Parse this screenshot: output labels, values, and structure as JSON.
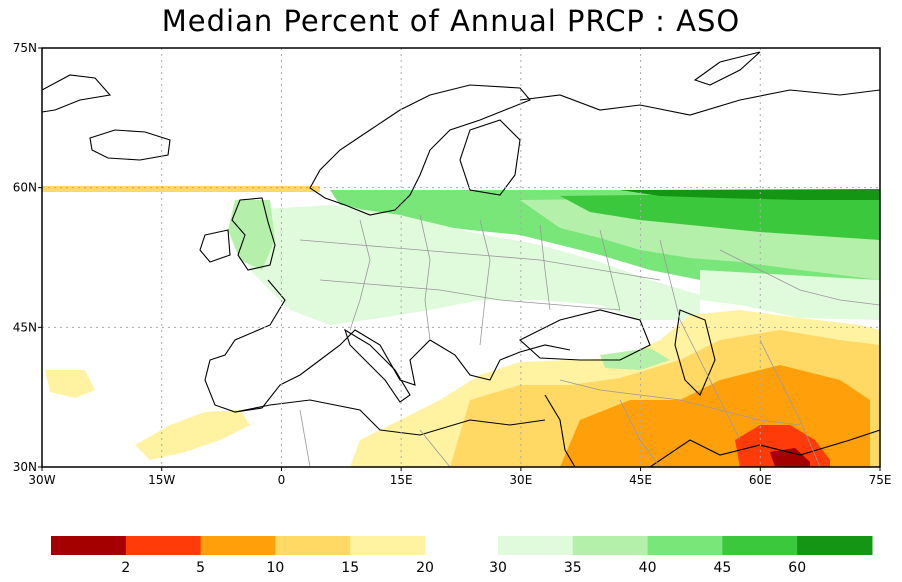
{
  "title": "Median Percent of Annual PRCP  :  ASO",
  "map": {
    "lon_range": [
      -30,
      75
    ],
    "lat_range": [
      30,
      75
    ],
    "lat_ticks": [
      {
        "value": 75,
        "label": "75N"
      },
      {
        "value": 60,
        "label": "60N"
      },
      {
        "value": 45,
        "label": "45N"
      },
      {
        "value": 30,
        "label": "30N"
      }
    ],
    "lon_ticks": [
      {
        "value": -30,
        "label": "30W"
      },
      {
        "value": -15,
        "label": "15W"
      },
      {
        "value": 0,
        "label": "0"
      },
      {
        "value": 15,
        "label": "15E"
      },
      {
        "value": 30,
        "label": "30E"
      },
      {
        "value": 45,
        "label": "45E"
      },
      {
        "value": 60,
        "label": "60E"
      },
      {
        "value": 75,
        "label": "75E"
      }
    ],
    "colors": {
      "c_lt2": "#a50000",
      "c_2_5": "#ff3b0a",
      "c_5_10": "#ffa00a",
      "c_10_15": "#ffd964",
      "c_15_20": "#fff2a0",
      "c_30_35": "#e0fadc",
      "c_35_40": "#b4f0aa",
      "c_40_45": "#78e678",
      "c_45_60": "#3cc83c",
      "c_gt60": "#149614"
    }
  },
  "colorbar": {
    "left_segments": [
      "#a50000",
      "#ff3b0a",
      "#ffa00a",
      "#ffd964",
      "#fff2a0"
    ],
    "left_labels": [
      "2",
      "5",
      "10",
      "15",
      "20"
    ],
    "right_segments": [
      "#e0fadc",
      "#b4f0aa",
      "#78e678",
      "#3cc83c",
      "#149614"
    ],
    "right_labels": [
      "30",
      "35",
      "40",
      "45",
      "60"
    ]
  }
}
